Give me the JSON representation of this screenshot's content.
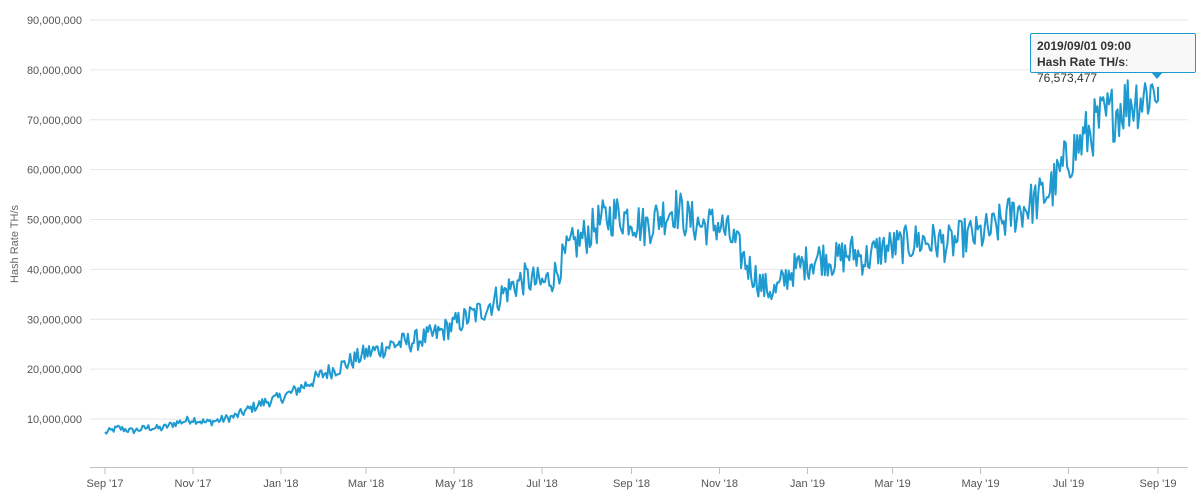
{
  "chart_data": {
    "type": "line",
    "title": "",
    "xlabel": "",
    "ylabel": "Hash Rate TH/s",
    "ylim": [
      0,
      90000000
    ],
    "xlim": [
      "2017-09-01",
      "2019-09-07"
    ],
    "grid": "horizontal",
    "color": "#1e9ad0",
    "y_ticks": [
      {
        "value": 10000000,
        "label": "10,000,000"
      },
      {
        "value": 20000000,
        "label": "20,000,000"
      },
      {
        "value": 30000000,
        "label": "30,000,000"
      },
      {
        "value": 40000000,
        "label": "40,000,000"
      },
      {
        "value": 50000000,
        "label": "50,000,000"
      },
      {
        "value": 60000000,
        "label": "60,000,000"
      },
      {
        "value": 70000000,
        "label": "70,000,000"
      },
      {
        "value": 80000000,
        "label": "80,000,000"
      },
      {
        "value": 90000000,
        "label": "90,000,000"
      }
    ],
    "x_ticks": [
      {
        "date": "2017-09-01",
        "label": "Sep '17"
      },
      {
        "date": "2017-11-01",
        "label": "Nov '17"
      },
      {
        "date": "2018-01-01",
        "label": "Jan '18"
      },
      {
        "date": "2018-03-01",
        "label": "Mar '18"
      },
      {
        "date": "2018-05-01",
        "label": "May '18"
      },
      {
        "date": "2018-07-01",
        "label": "Jul '18"
      },
      {
        "date": "2018-09-01",
        "label": "Sep '18"
      },
      {
        "date": "2018-11-01",
        "label": "Nov '18"
      },
      {
        "date": "2019-01-01",
        "label": "Jan '19"
      },
      {
        "date": "2019-03-01",
        "label": "Mar '19"
      },
      {
        "date": "2019-05-01",
        "label": "May '19"
      },
      {
        "date": "2019-07-01",
        "label": "Jul '19"
      },
      {
        "date": "2019-09-01",
        "label": "Sep '19"
      }
    ],
    "series": [
      {
        "points": [
          [
            "2017-09-01",
            7200000
          ],
          [
            "2017-09-10",
            8200000
          ],
          [
            "2017-09-20",
            7600000
          ],
          [
            "2017-10-01",
            8300000
          ],
          [
            "2017-10-10",
            8100000
          ],
          [
            "2017-10-20",
            9200000
          ],
          [
            "2017-11-01",
            10000000
          ],
          [
            "2017-11-10",
            9300000
          ],
          [
            "2017-11-20",
            9800000
          ],
          [
            "2017-12-01",
            10600000
          ],
          [
            "2017-12-10",
            12000000
          ],
          [
            "2017-12-20",
            13300000
          ],
          [
            "2018-01-01",
            14300000
          ],
          [
            "2018-01-10",
            15500000
          ],
          [
            "2018-01-20",
            17200000
          ],
          [
            "2018-02-01",
            19300000
          ],
          [
            "2018-02-10",
            20300000
          ],
          [
            "2018-02-20",
            21800000
          ],
          [
            "2018-03-01",
            23200000
          ],
          [
            "2018-03-10",
            23900000
          ],
          [
            "2018-03-20",
            25000000
          ],
          [
            "2018-04-01",
            25500000
          ],
          [
            "2018-04-10",
            26200000
          ],
          [
            "2018-04-20",
            27200000
          ],
          [
            "2018-05-01",
            28900000
          ],
          [
            "2018-05-10",
            30300000
          ],
          [
            "2018-05-20",
            31700000
          ],
          [
            "2018-06-01",
            34500000
          ],
          [
            "2018-06-10",
            36600000
          ],
          [
            "2018-06-20",
            38200000
          ],
          [
            "2018-07-01",
            37000000
          ],
          [
            "2018-07-10",
            39000000
          ],
          [
            "2018-07-20",
            44200000
          ],
          [
            "2018-08-01",
            47000000
          ],
          [
            "2018-08-10",
            49500000
          ],
          [
            "2018-08-20",
            51000000
          ],
          [
            "2018-09-01",
            50500000
          ],
          [
            "2018-09-10",
            48500000
          ],
          [
            "2018-09-20",
            50500000
          ],
          [
            "2018-10-01",
            52500000
          ],
          [
            "2018-10-10",
            50000000
          ],
          [
            "2018-10-20",
            48800000
          ],
          [
            "2018-11-01",
            49000000
          ],
          [
            "2018-11-10",
            46000000
          ],
          [
            "2018-11-20",
            41000000
          ],
          [
            "2018-12-01",
            36500000
          ],
          [
            "2018-12-10",
            35500000
          ],
          [
            "2018-12-20",
            39500000
          ],
          [
            "2019-01-01",
            41500000
          ],
          [
            "2019-01-10",
            42500000
          ],
          [
            "2019-01-20",
            41800000
          ],
          [
            "2019-02-01",
            43500000
          ],
          [
            "2019-02-10",
            42000000
          ],
          [
            "2019-02-20",
            44000000
          ],
          [
            "2019-03-01",
            44500000
          ],
          [
            "2019-03-10",
            45000000
          ],
          [
            "2019-03-20",
            45800000
          ],
          [
            "2019-04-01",
            45500000
          ],
          [
            "2019-04-10",
            45000000
          ],
          [
            "2019-04-20",
            46500000
          ],
          [
            "2019-05-01",
            47000000
          ],
          [
            "2019-05-10",
            48000000
          ],
          [
            "2019-05-20",
            50500000
          ],
          [
            "2019-06-01",
            52500000
          ],
          [
            "2019-06-10",
            54000000
          ],
          [
            "2019-06-20",
            56500000
          ],
          [
            "2019-07-01",
            62500000
          ],
          [
            "2019-07-10",
            65500000
          ],
          [
            "2019-07-20",
            69000000
          ],
          [
            "2019-08-01",
            71500000
          ],
          [
            "2019-08-10",
            73500000
          ],
          [
            "2019-08-20",
            74500000
          ],
          [
            "2019-09-01",
            76573477
          ]
        ]
      }
    ]
  },
  "tooltip": {
    "date": "2019/09/01 09:00",
    "series_label": "Hash Rate TH/s",
    "separator": ": ",
    "value": "76,573,477"
  }
}
